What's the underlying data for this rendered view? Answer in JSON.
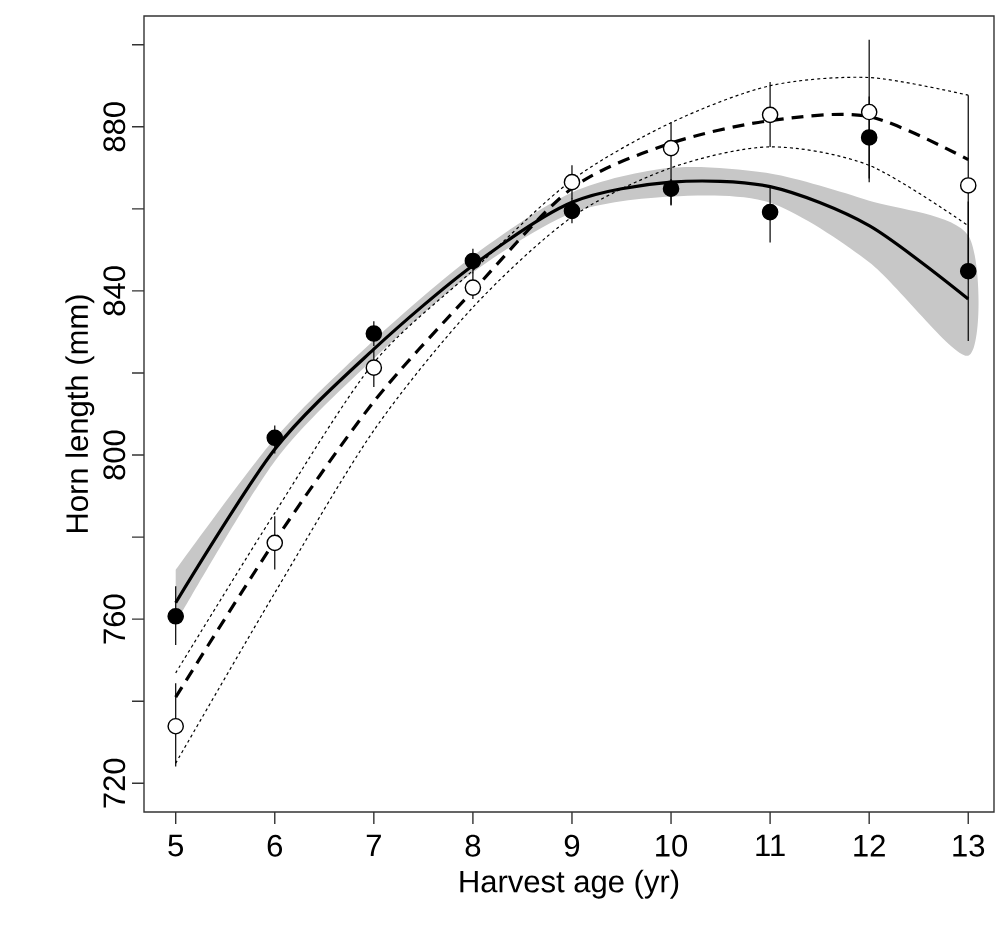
{
  "chart_data": {
    "type": "scatter",
    "xlabel": "Harvest age (yr)",
    "ylabel": "Horn length (mm)",
    "x": [
      5,
      6,
      7,
      8,
      9,
      10,
      11,
      12,
      13
    ],
    "xlim": [
      4.68,
      13.26
    ],
    "ylim": [
      713,
      907
    ],
    "xticks": [
      5,
      6,
      7,
      8,
      9,
      10,
      11,
      12,
      13
    ],
    "yticks": [
      720,
      {
        "value": 740,
        "label": null
      },
      760,
      {
        "value": 780,
        "label": null
      },
      800,
      {
        "value": 820,
        "label": null
      },
      840,
      {
        "value": 860,
        "label": null
      },
      880,
      {
        "value": 900,
        "label": null
      }
    ],
    "grid": false,
    "series": [
      {
        "type": "line",
        "color": "#000000",
        "line_style": "solid",
        "marker": "none",
        "values": [
          764,
          801.4,
          825.8,
          846.2,
          861.6,
          866.5,
          865.4,
          855.9,
          838
        ],
        "lower": [
          759,
          798.5,
          823.5,
          844.5,
          859,
          863,
          861.5,
          847,
          824.2
        ],
        "upper": [
          772,
          804,
          828,
          848.5,
          864,
          870,
          868.6,
          862,
          853.5
        ]
      },
      {
        "type": "line",
        "color": "#000000",
        "line_style": "dashed",
        "marker": "none",
        "values": [
          741,
          779,
          813,
          840,
          865,
          876,
          881.5,
          882.5,
          872
        ]
      },
      {
        "type": "line",
        "color": "#000000",
        "line_style": "dotted",
        "marker": "none",
        "values": [
          746.9,
          785.9,
          822.5,
          845,
          867,
          881,
          890,
          892,
          887.7
        ]
      },
      {
        "type": "line",
        "color": "#000000",
        "line_style": "dotted",
        "marker": "none",
        "values": [
          724.9,
          766.4,
          806,
          836,
          858,
          870,
          875.1,
          870.6,
          855.9
        ]
      },
      {
        "color": "#000000",
        "marker": "circle",
        "values": [
          760.7,
          804.2,
          829.6,
          847.3,
          859.5,
          864.9,
          859.2,
          877.4,
          844.8
        ],
        "errors": [
          [
            753.7,
            768
          ],
          [
            800.4,
            807.2
          ],
          [
            826.6,
            832.6
          ],
          [
            844.3,
            850.3
          ],
          [
            856.5,
            862.5
          ],
          [
            861,
            867.3
          ],
          [
            851.8,
            865.7
          ],
          [
            867.4,
            887.4
          ],
          [
            827.8,
            861.8
          ]
        ]
      },
      {
        "color": "#ffffff",
        "marker": "circle",
        "values": [
          733.9,
          778.6,
          821.3,
          840.8,
          866.5,
          874.8,
          882.9,
          883.6,
          865.7
        ],
        "errors": [
          [
            724.1,
            744.4
          ],
          [
            772.1,
            785.1
          ],
          [
            816.6,
            826
          ],
          [
            838,
            844.5
          ],
          [
            862.4,
            870.6
          ],
          [
            860.8,
            881.1
          ],
          [
            875.1,
            890.9
          ],
          [
            866.5,
            901.2
          ],
          [
            843.7,
            887.7
          ]
        ]
      }
    ]
  }
}
